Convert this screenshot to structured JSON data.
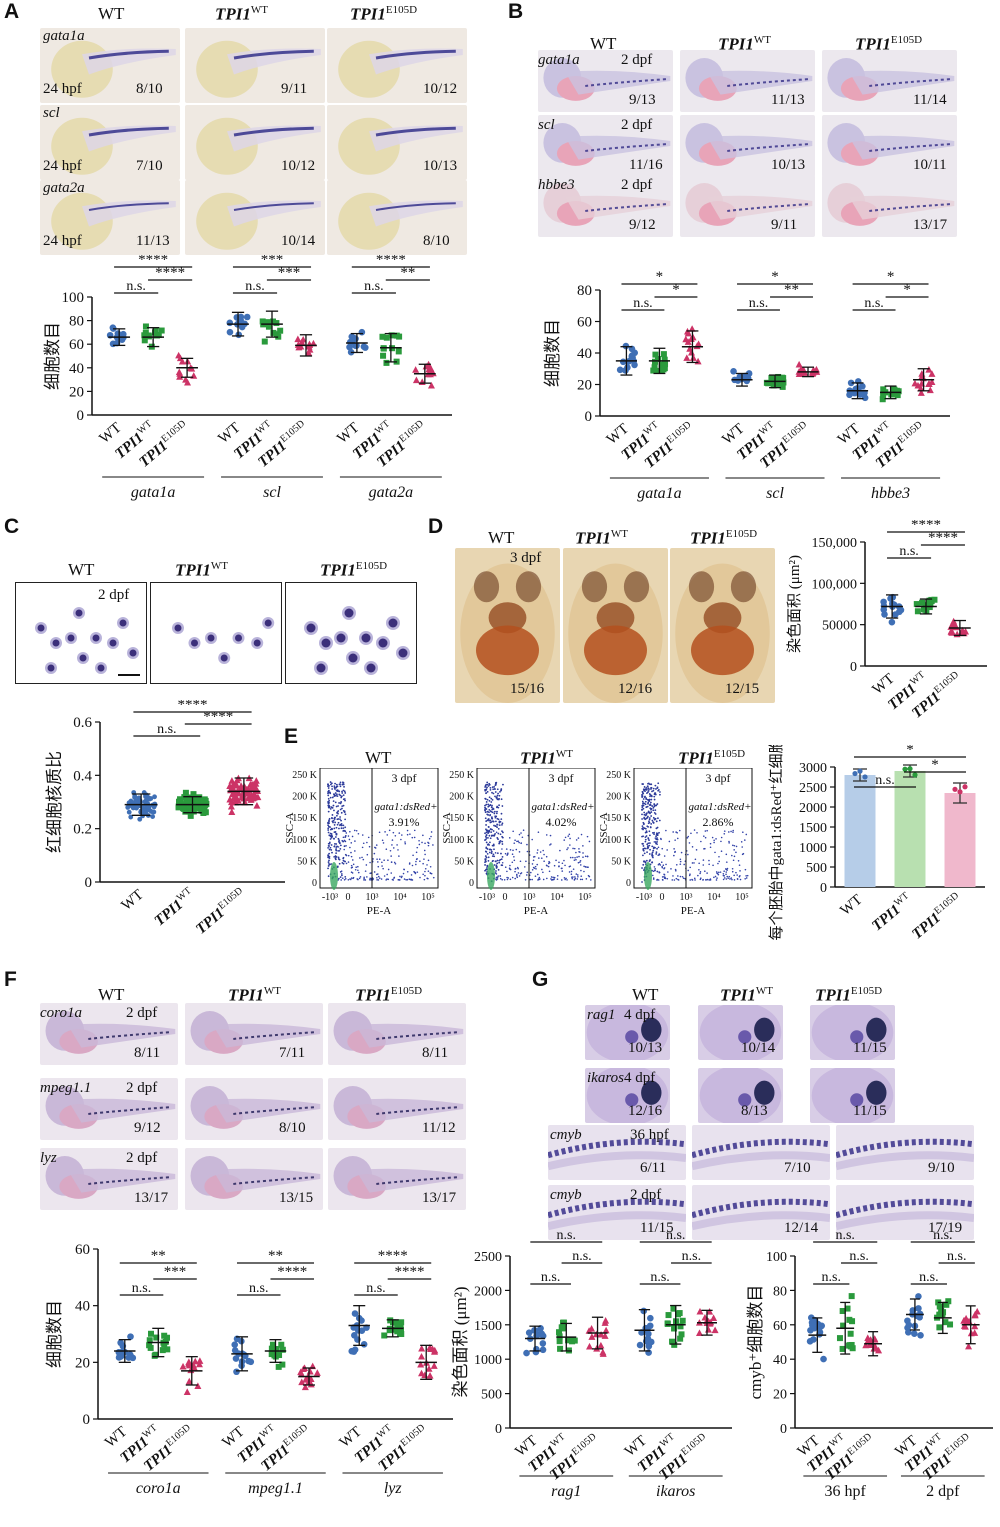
{
  "panel_letters": [
    "A",
    "B",
    "C",
    "D",
    "E",
    "F",
    "G"
  ],
  "genotypes": {
    "wt": "WT",
    "tpi_base": "TPI1",
    "tpi_wt_sup": "WT",
    "tpi_mut_sup": "E105D"
  },
  "A": {
    "rows": [
      {
        "gene": "gata1a",
        "stage": "24 hpf",
        "ratios": [
          "8/10",
          "9/11",
          "10/12"
        ]
      },
      {
        "gene": "scl",
        "stage": "24 hpf",
        "ratios": [
          "7/10",
          "10/12",
          "10/13"
        ]
      },
      {
        "gene": "gata2a",
        "stage": "24 hpf",
        "ratios": [
          "11/13",
          "10/14",
          "8/10"
        ]
      }
    ]
  },
  "B": {
    "rows": [
      {
        "gene": "gata1a",
        "stage": "2 dpf",
        "ratios": [
          "9/13",
          "11/13",
          "11/14"
        ]
      },
      {
        "gene": "scl",
        "stage": "2 dpf",
        "ratios": [
          "11/16",
          "10/13",
          "10/11"
        ]
      },
      {
        "gene": "hbbe3",
        "stage": "2 dpf",
        "ratios": [
          "9/12",
          "9/11",
          "13/17"
        ]
      }
    ]
  },
  "C": {
    "stage": "2 dpf"
  },
  "D": {
    "stage": "3 dpf",
    "ratios": [
      "15/16",
      "12/16",
      "12/15"
    ]
  },
  "E": {
    "stage": "3 dpf",
    "gate_label": "gata1:dsRed+",
    "percents": [
      "3.91%",
      "4.02%",
      "2.86%"
    ],
    "y_axis": "SSC-A",
    "x_axis": "PE-A",
    "y_ticks": [
      "250 K",
      "200 K",
      "150 K",
      "100 K",
      "50 K",
      "0"
    ],
    "x_ticks": [
      "-10³",
      "0",
      "10³",
      "10⁴",
      "10⁵"
    ]
  },
  "F": {
    "rows": [
      {
        "gene": "coro1a",
        "stage": "2 dpf",
        "ratios": [
          "8/11",
          "7/11",
          "8/11"
        ]
      },
      {
        "gene": "mpeg1.1",
        "stage": "2 dpf",
        "ratios": [
          "9/12",
          "8/10",
          "11/12"
        ]
      },
      {
        "gene": "lyz",
        "stage": "2 dpf",
        "ratios": [
          "13/17",
          "13/15",
          "13/17"
        ]
      }
    ]
  },
  "G": {
    "rows_small": [
      {
        "gene": "rag1",
        "stage": "4 dpf",
        "ratios": [
          "10/13",
          "10/14",
          "11/15"
        ]
      },
      {
        "gene": "ikaros",
        "stage": "4 dpf",
        "ratios": [
          "12/16",
          "8/13",
          "11/15"
        ]
      }
    ],
    "rows_wide": [
      {
        "gene": "cmyb",
        "stage": "36 hpf",
        "ratios": [
          "6/11",
          "7/10",
          "9/10"
        ]
      },
      {
        "gene": "cmyb",
        "stage": "2 dpf",
        "ratios": [
          "11/15",
          "12/14",
          "17/19"
        ]
      }
    ]
  },
  "colors": {
    "wt": "#3f6fb5",
    "tpi_wt": "#2a9a3c",
    "tpi_mut": "#cc3366",
    "bar_wt": "#b6cde8",
    "bar_tpi_wt": "#b8e0b0",
    "bar_tpi_mut": "#f0b8cc"
  },
  "chart_data": [
    {
      "id": "A",
      "type": "scatter",
      "ylabel": "细胞数目",
      "ylim": [
        0,
        100
      ],
      "yticks": [
        0,
        20,
        40,
        60,
        80,
        100
      ],
      "groups": [
        "gata1a",
        "scl",
        "gata2a"
      ],
      "means": [
        [
          66,
          66,
          40
        ],
        [
          77,
          77,
          59
        ],
        [
          61,
          57,
          35
        ]
      ],
      "sds": [
        [
          7,
          8,
          8
        ],
        [
          10,
          11,
          9
        ],
        [
          8,
          12,
          8
        ]
      ],
      "spread": [
        [
          [
            55,
            77
          ]
        ],
        []
      ],
      "sig": [
        {
          "a": 0,
          "b": 2,
          "label": "****",
          "level": 0
        },
        {
          "a": 1,
          "b": 2,
          "label": "****",
          "level": 1
        },
        {
          "a": 0,
          "b": 1,
          "label": "n.s.",
          "level": 2
        },
        {
          "a": 3,
          "b": 5,
          "label": "***",
          "level": 0
        },
        {
          "a": 4,
          "b": 5,
          "label": "***",
          "level": 1
        },
        {
          "a": 3,
          "b": 4,
          "label": "n.s.",
          "level": 2
        },
        {
          "a": 6,
          "b": 8,
          "label": "****",
          "level": 0
        },
        {
          "a": 7,
          "b": 8,
          "label": "**",
          "level": 1
        },
        {
          "a": 6,
          "b": 7,
          "label": "n.s.",
          "level": 2
        }
      ]
    },
    {
      "id": "B",
      "type": "scatter",
      "ylabel": "细胞数目",
      "ylim": [
        0,
        80
      ],
      "yticks": [
        0,
        20,
        40,
        60,
        80
      ],
      "groups": [
        "gata1a",
        "scl",
        "hbbe3"
      ],
      "means": [
        [
          35,
          35,
          44
        ],
        [
          23,
          22,
          28
        ],
        [
          16,
          15,
          23
        ]
      ],
      "sds": [
        [
          9,
          8,
          10
        ],
        [
          4,
          4,
          3
        ],
        [
          5,
          4,
          7
        ]
      ],
      "sig": [
        {
          "a": 0,
          "b": 2,
          "label": "*",
          "level": 0
        },
        {
          "a": 1,
          "b": 2,
          "label": "*",
          "level": 1
        },
        {
          "a": 0,
          "b": 1,
          "label": "n.s.",
          "level": 2
        },
        {
          "a": 3,
          "b": 5,
          "label": "*",
          "level": 0
        },
        {
          "a": 4,
          "b": 5,
          "label": "**",
          "level": 1
        },
        {
          "a": 3,
          "b": 4,
          "label": "n.s.",
          "level": 2
        },
        {
          "a": 6,
          "b": 8,
          "label": "*",
          "level": 0
        },
        {
          "a": 7,
          "b": 8,
          "label": "*",
          "level": 1
        },
        {
          "a": 6,
          "b": 7,
          "label": "n.s.",
          "level": 2
        }
      ]
    },
    {
      "id": "C",
      "type": "scatter",
      "ylabel": "红细胞核质比",
      "ylim": [
        0,
        0.6
      ],
      "yticks": [
        0,
        0.2,
        0.4,
        0.6
      ],
      "means": [
        0.29,
        0.29,
        0.34
      ],
      "sds": [
        0.04,
        0.03,
        0.05
      ],
      "sig": [
        {
          "a": 0,
          "b": 2,
          "label": "****",
          "level": 0
        },
        {
          "a": 1,
          "b": 2,
          "label": "****",
          "level": 1
        },
        {
          "a": 0,
          "b": 1,
          "label": "n.s.",
          "level": 2
        }
      ]
    },
    {
      "id": "D",
      "type": "scatter",
      "ylabel": "染色面积 (μm²)",
      "ylim": [
        0,
        150000
      ],
      "yticks": [
        0,
        50000,
        100000,
        150000
      ],
      "ytick_labels": [
        "0",
        "50000",
        "100,000",
        "150,000"
      ],
      "means": [
        72000,
        72000,
        46000
      ],
      "sds": [
        14000,
        9000,
        9000
      ],
      "sig": [
        {
          "a": 0,
          "b": 2,
          "label": "****",
          "level": 0
        },
        {
          "a": 1,
          "b": 2,
          "label": "****",
          "level": 1
        },
        {
          "a": 0,
          "b": 1,
          "label": "n.s.",
          "level": 2
        }
      ]
    },
    {
      "id": "E",
      "type": "bar",
      "ylabel": "每个胚胎中gata1:dsRed⁺红细胞的数量",
      "ylim": [
        0,
        3000
      ],
      "yticks": [
        0,
        500,
        1000,
        1500,
        2000,
        2500,
        3000
      ],
      "values": [
        2800,
        2900,
        2350
      ],
      "errors": [
        150,
        150,
        250
      ],
      "sig": [
        {
          "a": 0,
          "b": 2,
          "label": "*",
          "level": 0
        },
        {
          "a": 1,
          "b": 2,
          "label": "*",
          "level": 1
        },
        {
          "a": 0,
          "b": 1,
          "label": "n.s.",
          "level": 2
        }
      ]
    },
    {
      "id": "F",
      "type": "scatter",
      "ylabel": "细胞数目",
      "ylim": [
        0,
        60
      ],
      "yticks": [
        0,
        20,
        40,
        60
      ],
      "groups": [
        "coro1a",
        "mpeg1.1",
        "lyz"
      ],
      "means": [
        [
          24,
          27,
          17
        ],
        [
          23,
          24,
          15
        ],
        [
          33,
          32,
          20
        ]
      ],
      "sds": [
        [
          4,
          5,
          5
        ],
        [
          6,
          4,
          3
        ],
        [
          7,
          3,
          6
        ]
      ],
      "sig": [
        {
          "a": 0,
          "b": 2,
          "label": "**",
          "level": 0
        },
        {
          "a": 1,
          "b": 2,
          "label": "***",
          "level": 1
        },
        {
          "a": 0,
          "b": 1,
          "label": "n.s.",
          "level": 2
        },
        {
          "a": 3,
          "b": 5,
          "label": "**",
          "level": 0
        },
        {
          "a": 4,
          "b": 5,
          "label": "****",
          "level": 1
        },
        {
          "a": 3,
          "b": 4,
          "label": "n.s.",
          "level": 2
        },
        {
          "a": 6,
          "b": 8,
          "label": "****",
          "level": 0
        },
        {
          "a": 7,
          "b": 8,
          "label": "****",
          "level": 1
        },
        {
          "a": 6,
          "b": 7,
          "label": "n.s.",
          "level": 2
        }
      ]
    },
    {
      "id": "G1",
      "type": "scatter",
      "ylabel": "染色面积 (μm²)",
      "ylim": [
        0,
        2500
      ],
      "yticks": [
        0,
        500,
        1000,
        1500,
        2000,
        2500
      ],
      "groups": [
        "rag1",
        "ikaros"
      ],
      "means": [
        [
          1300,
          1320,
          1380
        ],
        [
          1420,
          1500,
          1530
        ]
      ],
      "sds": [
        [
          180,
          200,
          230
        ],
        [
          300,
          280,
          180
        ]
      ],
      "sig": [
        {
          "a": 0,
          "b": 2,
          "label": "n.s.",
          "level": 0
        },
        {
          "a": 1,
          "b": 2,
          "label": "n.s.",
          "level": 1
        },
        {
          "a": 0,
          "b": 1,
          "label": "n.s.",
          "level": 2
        },
        {
          "a": 3,
          "b": 5,
          "label": "n.s.",
          "level": 0
        },
        {
          "a": 4,
          "b": 5,
          "label": "n.s.",
          "level": 1
        },
        {
          "a": 3,
          "b": 4,
          "label": "n.s.",
          "level": 2
        }
      ]
    },
    {
      "id": "G2",
      "type": "scatter",
      "ylabel": "cmyb⁺细胞数目",
      "ylim": [
        0,
        100
      ],
      "yticks": [
        0,
        20,
        40,
        60,
        80,
        100
      ],
      "groups": [
        "36 hpf",
        "2 dpf"
      ],
      "means": [
        [
          54,
          58,
          49
        ],
        [
          66,
          64,
          60
        ]
      ],
      "sds": [
        [
          10,
          15,
          7
        ],
        [
          9,
          9,
          11
        ]
      ],
      "sig": [
        {
          "a": 0,
          "b": 2,
          "label": "n.s.",
          "level": 0
        },
        {
          "a": 1,
          "b": 2,
          "label": "n.s.",
          "level": 1
        },
        {
          "a": 0,
          "b": 1,
          "label": "n.s.",
          "level": 2
        },
        {
          "a": 3,
          "b": 5,
          "label": "n.s.",
          "level": 0
        },
        {
          "a": 4,
          "b": 5,
          "label": "n.s.",
          "level": 1
        },
        {
          "a": 3,
          "b": 4,
          "label": "n.s.",
          "level": 2
        }
      ]
    }
  ]
}
